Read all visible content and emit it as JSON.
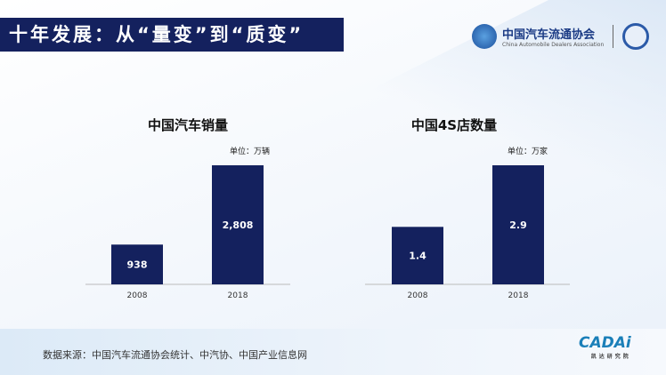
{
  "title": "十年发展：从“量变”到“质变”",
  "logo": {
    "cn": "中国汽车流通协会",
    "en": "China Automobile Dealers Association",
    "abbr": "CADA"
  },
  "source": "数据来源：中国汽车流通协会统计、中汽协、中国产业信息网",
  "footer_logo": {
    "name": "CADAi",
    "sub": "凯达研究院"
  },
  "colors": {
    "bar": "#14215e",
    "title_bg": "#14215e"
  },
  "chart_data": [
    {
      "type": "bar",
      "title": "中国汽车销量",
      "unit": "单位：万辆",
      "categories": [
        "2008",
        "2018"
      ],
      "values": [
        938,
        2808
      ],
      "labels": [
        "938",
        "2,808"
      ],
      "ylim": [
        0,
        2808
      ]
    },
    {
      "type": "bar",
      "title": "中国4S店数量",
      "unit": "单位：万家",
      "categories": [
        "2008",
        "2018"
      ],
      "values": [
        1.4,
        2.9
      ],
      "labels": [
        "1.4",
        "2.9"
      ],
      "ylim": [
        0,
        2.9
      ]
    }
  ]
}
